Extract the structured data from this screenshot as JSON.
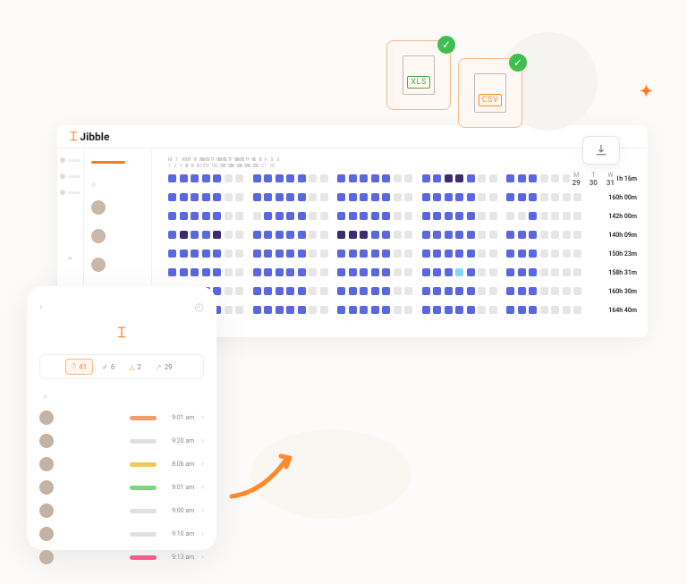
{
  "brand": "Jibble",
  "export": {
    "xls": "XLS",
    "csv": "CSV"
  },
  "date_overlay": {
    "days": [
      "M",
      "T",
      "W"
    ],
    "nums": [
      "29",
      "30",
      "31"
    ]
  },
  "day_letters": [
    "M",
    "T",
    "W",
    "T",
    "F",
    "S",
    "S"
  ],
  "day_nums_weeks": [
    [
      "1",
      "2",
      "3",
      "4",
      "5",
      "6",
      "7"
    ],
    [
      "8",
      "9",
      "10",
      "11",
      "12",
      "13",
      "14"
    ],
    [
      "15",
      "16",
      "17",
      "18",
      "19",
      "20",
      "21"
    ],
    [
      "22",
      "23",
      "24",
      "25",
      "26",
      "27",
      "28"
    ],
    [
      "29",
      "30",
      "31",
      "",
      "",
      "",
      ""
    ]
  ],
  "rows": [
    {
      "total": "171h 16m",
      "cells": [
        [
          "b",
          "b",
          "b",
          "b",
          "b",
          "g",
          "g"
        ],
        [
          "b",
          "b",
          "b",
          "b",
          "b",
          "g",
          "g"
        ],
        [
          "b",
          "b",
          "b",
          "b",
          "b",
          "g",
          "g"
        ],
        [
          "b",
          "b",
          "d",
          "d",
          "b",
          "g",
          "g"
        ],
        [
          "b",
          "b",
          "b",
          "g",
          "g",
          "g",
          "g"
        ]
      ]
    },
    {
      "total": "160h 00m",
      "cells": [
        [
          "b",
          "b",
          "b",
          "b",
          "b",
          "g",
          "g"
        ],
        [
          "b",
          "b",
          "b",
          "b",
          "b",
          "g",
          "g"
        ],
        [
          "b",
          "b",
          "b",
          "b",
          "b",
          "g",
          "g"
        ],
        [
          "b",
          "b",
          "b",
          "b",
          "b",
          "g",
          "g"
        ],
        [
          "b",
          "b",
          "b",
          "g",
          "g",
          "g",
          "g"
        ]
      ]
    },
    {
      "total": "142h 00m",
      "cells": [
        [
          "b",
          "b",
          "b",
          "b",
          "b",
          "g",
          "g"
        ],
        [
          "g",
          "b",
          "b",
          "b",
          "b",
          "g",
          "g"
        ],
        [
          "b",
          "b",
          "b",
          "b",
          "b",
          "g",
          "g"
        ],
        [
          "b",
          "b",
          "b",
          "b",
          "b",
          "g",
          "g"
        ],
        [
          "g",
          "g",
          "b",
          "g",
          "g",
          "g",
          "g"
        ]
      ]
    },
    {
      "total": "140h 09m",
      "cells": [
        [
          "b",
          "d",
          "b",
          "b",
          "d",
          "g",
          "g"
        ],
        [
          "b",
          "b",
          "b",
          "b",
          "b",
          "g",
          "g"
        ],
        [
          "d",
          "d",
          "d",
          "b",
          "b",
          "g",
          "g"
        ],
        [
          "b",
          "b",
          "b",
          "b",
          "b",
          "g",
          "g"
        ],
        [
          "b",
          "b",
          "b",
          "g",
          "g",
          "g",
          "g"
        ]
      ]
    },
    {
      "total": "150h 23m",
      "cells": [
        [
          "b",
          "b",
          "b",
          "b",
          "b",
          "g",
          "g"
        ],
        [
          "b",
          "b",
          "b",
          "b",
          "b",
          "g",
          "g"
        ],
        [
          "b",
          "b",
          "b",
          "b",
          "b",
          "g",
          "g"
        ],
        [
          "b",
          "b",
          "b",
          "b",
          "b",
          "g",
          "g"
        ],
        [
          "b",
          "b",
          "b",
          "g",
          "g",
          "g",
          "g"
        ]
      ]
    },
    {
      "total": "158h 31m",
      "cells": [
        [
          "b",
          "b",
          "b",
          "b",
          "b",
          "g",
          "g"
        ],
        [
          "b",
          "b",
          "b",
          "b",
          "b",
          "g",
          "g"
        ],
        [
          "b",
          "b",
          "b",
          "b",
          "b",
          "g",
          "g"
        ],
        [
          "b",
          "b",
          "b",
          "c",
          "b",
          "g",
          "g"
        ],
        [
          "b",
          "b",
          "b",
          "g",
          "g",
          "g",
          "g"
        ]
      ]
    },
    {
      "total": "160h 30m",
      "cells": [
        [
          "b",
          "b",
          "b",
          "b",
          "b",
          "g",
          "g"
        ],
        [
          "b",
          "b",
          "b",
          "b",
          "b",
          "g",
          "g"
        ],
        [
          "b",
          "b",
          "b",
          "b",
          "b",
          "g",
          "g"
        ],
        [
          "b",
          "b",
          "b",
          "b",
          "b",
          "g",
          "g"
        ],
        [
          "b",
          "b",
          "b",
          "g",
          "g",
          "g",
          "g"
        ]
      ]
    },
    {
      "total": "164h 40m",
      "cells": [
        [
          "b",
          "d",
          "b",
          "b",
          "b",
          "g",
          "g"
        ],
        [
          "b",
          "b",
          "b",
          "b",
          "b",
          "g",
          "g"
        ],
        [
          "b",
          "b",
          "b",
          "b",
          "b",
          "g",
          "g"
        ],
        [
          "b",
          "b",
          "b",
          "b",
          "b",
          "g",
          "g"
        ],
        [
          "b",
          "b",
          "b",
          "g",
          "g",
          "g",
          "g"
        ]
      ]
    }
  ],
  "mobile": {
    "chips": [
      {
        "icon": "person",
        "color": "#ff7a1a",
        "value": "41",
        "active": true
      },
      {
        "icon": "check",
        "color": "#4aa84e",
        "value": "6"
      },
      {
        "icon": "flame",
        "color": "#ff9a3a",
        "value": "2"
      },
      {
        "icon": "exit",
        "color": "#bbb",
        "value": "29"
      }
    ],
    "rows": [
      {
        "time": "9:01 am",
        "color": "#f59b6d"
      },
      {
        "time": "9:20 am",
        "color": "#e0e0e0"
      },
      {
        "time": "8:06 am",
        "color": "#f2c85a"
      },
      {
        "time": "9:01 am",
        "color": "#7fd47f"
      },
      {
        "time": "9:00 am",
        "color": "#e0e0e0"
      },
      {
        "time": "9:10 am",
        "color": "#e0e0e0"
      },
      {
        "time": "9:13 am",
        "color": "#ef5d8a"
      }
    ]
  }
}
